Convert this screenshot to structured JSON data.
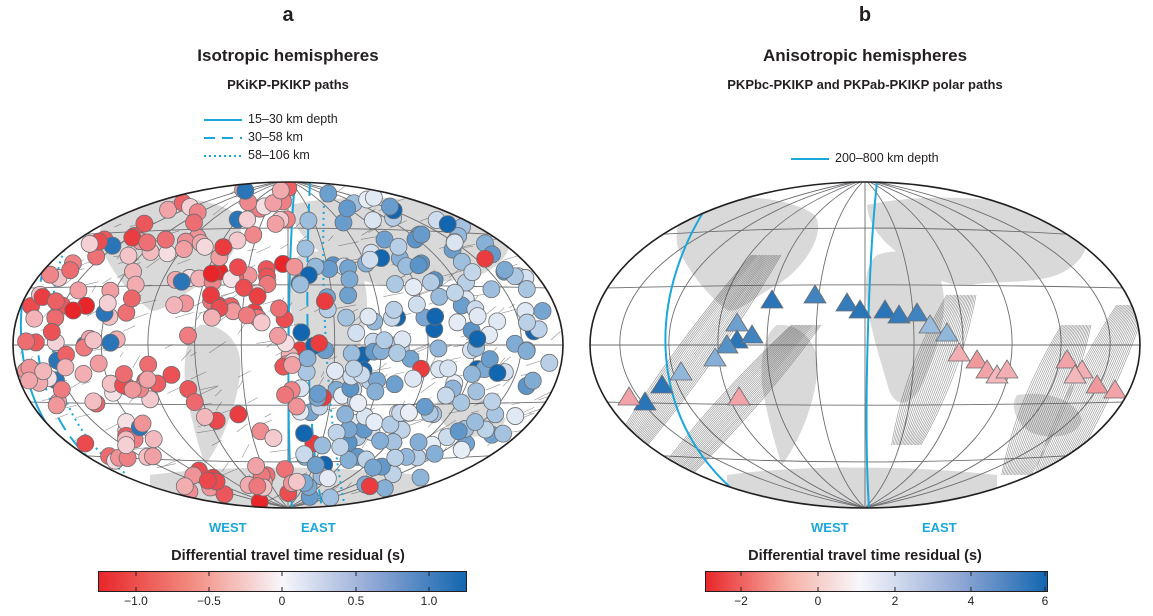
{
  "panel_a": {
    "letter": "a",
    "title": "Isotropic hemispheres",
    "subtitle": "PKiKP-PKIKP paths",
    "legend": [
      "15–30 km depth",
      "30–58 km",
      "58–106 km"
    ],
    "west": "WEST",
    "east": "EAST",
    "colorbar_title": "Differential travel time residual (s)",
    "ticks": [
      "−1.0",
      "−0.5",
      "0",
      "0.5",
      "1.0"
    ]
  },
  "panel_b": {
    "letter": "b",
    "title": "Anisotropic hemispheres",
    "subtitle": "PKPbc-PKIKP and PKPab-PKIKP polar paths",
    "legend": [
      "200–800 km depth"
    ],
    "west": "WEST",
    "east": "EAST",
    "colorbar_title": "Differential travel time residual (s)",
    "ticks": [
      "−2",
      "0",
      "2",
      "4",
      "6"
    ]
  },
  "colors": {
    "boundary": "#1aa7dc",
    "land": "#d9d9d9",
    "grid": "#6d6e71",
    "negative": "#e8262a",
    "positive": "#1266b0"
  }
}
